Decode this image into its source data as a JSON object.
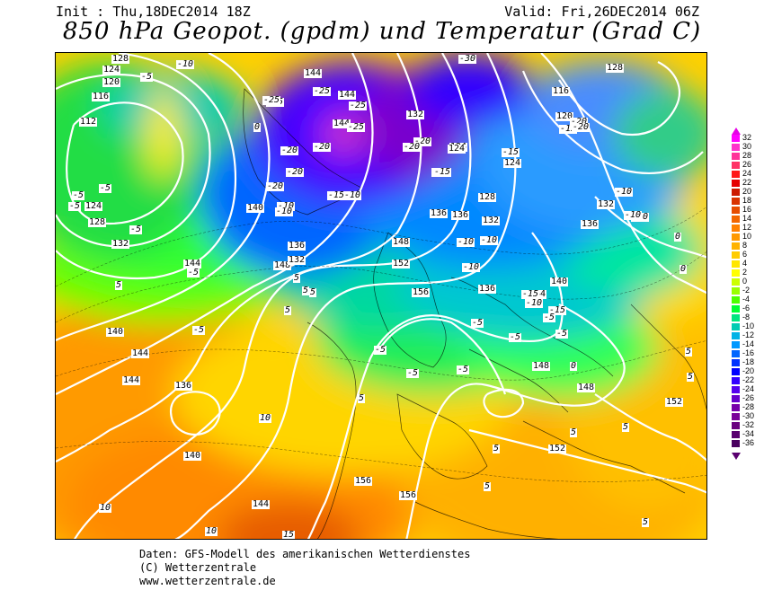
{
  "header": {
    "init": "Init : Thu,18DEC2014 18Z",
    "valid": "Valid: Fri,26DEC2014 06Z",
    "title": "850 hPa Geopot. (gpdm) und Temperatur (Grad C)"
  },
  "footer": {
    "line1": "Daten: GFS-Modell des amerikanischen Wetterdienstes",
    "line2": "(C) Wetterzentrale",
    "line3": "www.wetterzentrale.de"
  },
  "scale": [
    {
      "v": "32",
      "c": "#ff00ff"
    },
    {
      "v": "30",
      "c": "#ff33cc"
    },
    {
      "v": "28",
      "c": "#ff3399"
    },
    {
      "v": "26",
      "c": "#ff3366"
    },
    {
      "v": "24",
      "c": "#ff1a1a"
    },
    {
      "v": "22",
      "c": "#e60000"
    },
    {
      "v": "20",
      "c": "#cc1a00"
    },
    {
      "v": "18",
      "c": "#d93300"
    },
    {
      "v": "16",
      "c": "#e64d00"
    },
    {
      "v": "14",
      "c": "#f26600"
    },
    {
      "v": "12",
      "c": "#ff8000"
    },
    {
      "v": "10",
      "c": "#ff9900"
    },
    {
      "v": "8",
      "c": "#ffb300"
    },
    {
      "v": "6",
      "c": "#ffcc00"
    },
    {
      "v": "4",
      "c": "#ffe600"
    },
    {
      "v": "2",
      "c": "#ffff00"
    },
    {
      "v": "0",
      "c": "#ccff00"
    },
    {
      "v": "-2",
      "c": "#99ff00"
    },
    {
      "v": "-4",
      "c": "#4dff00"
    },
    {
      "v": "-6",
      "c": "#00ff33"
    },
    {
      "v": "-8",
      "c": "#00e680"
    },
    {
      "v": "-10",
      "c": "#00ccb3"
    },
    {
      "v": "-12",
      "c": "#00b3e6"
    },
    {
      "v": "-14",
      "c": "#0099ff"
    },
    {
      "v": "-16",
      "c": "#0066ff"
    },
    {
      "v": "-18",
      "c": "#0033ff"
    },
    {
      "v": "-20",
      "c": "#0000ff"
    },
    {
      "v": "-22",
      "c": "#3300ff"
    },
    {
      "v": "-24",
      "c": "#5500ee"
    },
    {
      "v": "-26",
      "c": "#6600cc"
    },
    {
      "v": "-28",
      "c": "#7700aa"
    },
    {
      "v": "-30",
      "c": "#7a0099"
    },
    {
      "v": "-32",
      "c": "#6a0080"
    },
    {
      "v": "-34",
      "c": "#5a0070"
    },
    {
      "v": "-36",
      "c": "#4a0060"
    }
  ],
  "map": {
    "height_labels": [
      "128",
      "124",
      "120",
      "116",
      "112",
      "124",
      "128",
      "132",
      "140",
      "144",
      "148",
      "144",
      "136",
      "132",
      "144",
      "152",
      "156",
      "148",
      "136",
      "128",
      "132",
      "136",
      "124",
      "124",
      "144",
      "140",
      "136",
      "140",
      "144",
      "156",
      "156",
      "152",
      "148",
      "148",
      "152",
      "140",
      "136",
      "144",
      "116",
      "120",
      "128",
      "132",
      "136",
      "144",
      "132",
      "124",
      "144"
    ],
    "temp_labels": [
      "-10",
      "-5",
      "-25",
      "-20",
      "-20",
      "-20",
      "-20",
      "-15",
      "-10",
      "-10",
      "-5",
      "-5",
      "-5",
      "-5",
      "-5",
      "-10",
      "0",
      "5",
      "5",
      "5",
      "10",
      "10",
      "10",
      "15",
      "5",
      "-5",
      "-10",
      "-15",
      "-20",
      "-25",
      "-30",
      "-25",
      "-25",
      "-20",
      "-15",
      "-10",
      "-10",
      "-15",
      "-5",
      "-5",
      "-5",
      "-10",
      "-15",
      "-10",
      "-15",
      "-20",
      "-10",
      "0",
      "0",
      "5",
      "5",
      "5",
      "5",
      "5",
      "5",
      "5",
      "-5",
      "0",
      "-15",
      "-10",
      "-20",
      "-25",
      "-5",
      "5",
      "5",
      "-5",
      "-5"
    ]
  }
}
